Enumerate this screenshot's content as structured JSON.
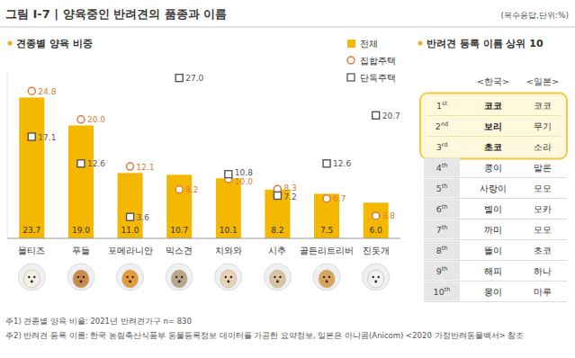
{
  "header": {
    "title": "그림 Ⅰ-7 | 양육중인 반려견의 품종과 이름",
    "unit": "(복수응답,단위:%)"
  },
  "chart_data": {
    "type": "bar",
    "title": "견종별 양육 비중",
    "categories": [
      "몰티즈",
      "푸들",
      "포메라니안",
      "믹스견",
      "치와와",
      "시추",
      "골든리트리버",
      "진돗개"
    ],
    "series": [
      {
        "name": "전체",
        "type": "bar",
        "color": "#f5b800",
        "values": [
          23.7,
          19.0,
          11.0,
          10.7,
          10.1,
          8.2,
          7.5,
          6.0
        ],
        "value_labels": [
          "23.7",
          "19.0",
          "11.0",
          "10.7",
          "10.1",
          "8.2",
          "7.5",
          "6.0"
        ]
      },
      {
        "name": "집합주택",
        "type": "scatter",
        "marker": "circle",
        "color": "#e07b39",
        "values": [
          24.8,
          20.0,
          12.1,
          8.2,
          10.0,
          8.3,
          6.7,
          3.8
        ],
        "value_labels": [
          "24.8",
          "20.0",
          "12.1",
          "8.2",
          "10.0",
          "8.3",
          "6.7",
          "3.8"
        ]
      },
      {
        "name": "단독주택",
        "type": "scatter",
        "marker": "square",
        "color": "#555555",
        "values": [
          17.1,
          12.6,
          3.6,
          27.0,
          10.8,
          7.2,
          12.6,
          20.7
        ],
        "value_labels": [
          "17.1",
          "12.6",
          "3.6",
          "27.0",
          "10.8",
          "7.2",
          "12.6",
          "20.7"
        ]
      }
    ],
    "ylim": [
      0,
      28
    ],
    "yticks": [],
    "tick_labels": "x",
    "data_labels": true,
    "legend": "top-right"
  },
  "name_table": {
    "title": "반려견 등록 이름 상위 10",
    "columns": [
      "<한국>",
      "<일본>"
    ],
    "rows": [
      {
        "rank": {
          "num": "1",
          "suffix": "st"
        },
        "korea": "코코",
        "japan": "코코"
      },
      {
        "rank": {
          "num": "2",
          "suffix": "nd"
        },
        "korea": "보리",
        "japan": "무기"
      },
      {
        "rank": {
          "num": "3",
          "suffix": "rd"
        },
        "korea": "초코",
        "japan": "소라"
      },
      {
        "rank": {
          "num": "4",
          "suffix": "th"
        },
        "korea": "콩이",
        "japan": "말론"
      },
      {
        "rank": {
          "num": "5",
          "suffix": "th"
        },
        "korea": "사랑이",
        "japan": "모모"
      },
      {
        "rank": {
          "num": "6",
          "suffix": "th"
        },
        "korea": "별이",
        "japan": "모카"
      },
      {
        "rank": {
          "num": "7",
          "suffix": "th"
        },
        "korea": "까미",
        "japan": "모모"
      },
      {
        "rank": {
          "num": "8",
          "suffix": "th"
        },
        "korea": "똘이",
        "japan": "초코"
      },
      {
        "rank": {
          "num": "9",
          "suffix": "th"
        },
        "korea": "해피",
        "japan": "하나"
      },
      {
        "rank": {
          "num": "10",
          "suffix": "th"
        },
        "korea": "몽이",
        "japan": "마루"
      }
    ]
  },
  "notes": [
    "주1) 견종별 양육 비율: 2021년 반려견가구 n= 830",
    "주2) 반려견 등록 이름: 한국 농림축산식품부 동물등록정보 데이터를 가공한 요약정보, 일본은 아니콤(Anicom) <2020 가정반려동물백서> 참조"
  ]
}
